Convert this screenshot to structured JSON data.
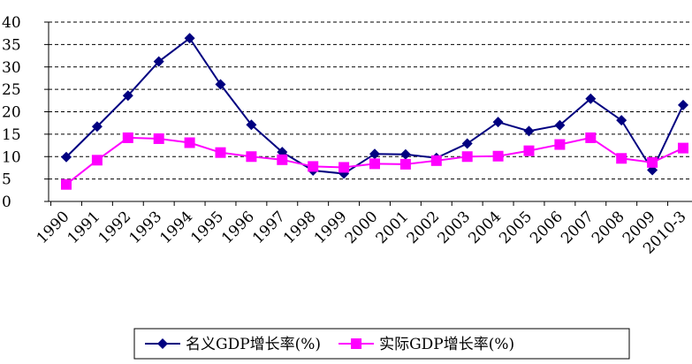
{
  "chart_data": {
    "type": "line",
    "categories": [
      "1990",
      "1991",
      "1992",
      "1993",
      "1994",
      "1995",
      "1996",
      "1997",
      "1998",
      "1999",
      "2000",
      "2001",
      "2002",
      "2003",
      "2004",
      "2005",
      "2006",
      "2007",
      "2008",
      "2009",
      "2010-3"
    ],
    "series": [
      {
        "name": "名义GDP增长率(%)",
        "color": "#000080",
        "marker": "diamond",
        "values": [
          9.9,
          16.7,
          23.6,
          31.2,
          36.4,
          26.1,
          17.1,
          11.0,
          6.9,
          6.2,
          10.6,
          10.5,
          9.7,
          12.9,
          17.7,
          15.7,
          17.0,
          22.9,
          18.1,
          7.0,
          21.5
        ]
      },
      {
        "name": "实际GDP增长率(%)",
        "color": "#ff00ff",
        "marker": "square",
        "values": [
          3.8,
          9.2,
          14.2,
          14.0,
          13.1,
          10.9,
          10.0,
          9.3,
          7.8,
          7.6,
          8.4,
          8.3,
          9.1,
          10.0,
          10.1,
          11.3,
          12.7,
          14.2,
          9.6,
          8.7,
          11.9
        ]
      }
    ],
    "ylim": [
      0,
      40
    ],
    "yticks": [
      0,
      5,
      10,
      15,
      20,
      25,
      30,
      35,
      40
    ],
    "grid": true,
    "legend": "bottom"
  }
}
